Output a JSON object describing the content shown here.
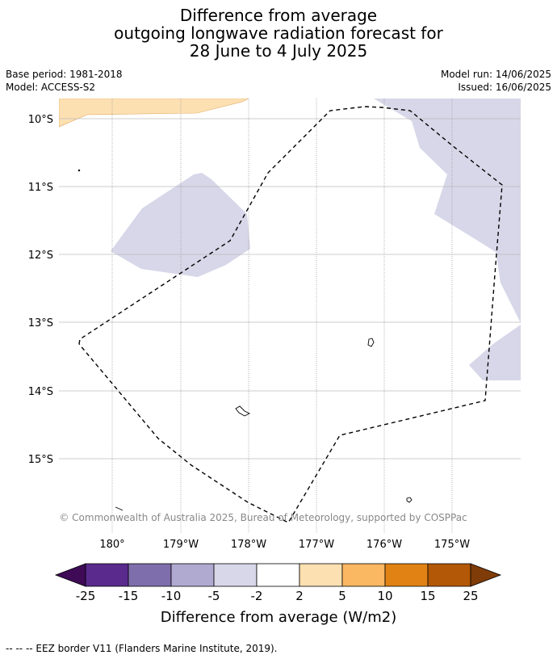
{
  "title": {
    "line1": "Difference from average",
    "line2": "outgoing longwave radiation forecast for",
    "line3": "28 June to 4 July 2025"
  },
  "meta": {
    "base_period": "Base period: 1981-2018",
    "model": "Model: ACCESS-S2",
    "model_run": "Model run: 14/06/2025",
    "issued": "Issued: 16/06/2025"
  },
  "map": {
    "lat_labels": [
      "10°S",
      "11°S",
      "12°S",
      "13°S",
      "14°S",
      "15°S"
    ],
    "lon_labels": [
      "180°",
      "179°W",
      "178°W",
      "177°W",
      "176°W",
      "175°W"
    ],
    "copyright": "© Commonwealth of Australia 2025, Bureau of Meteorology, supported by COSPPac",
    "colors": {
      "slight_negative": "#d7d7e9",
      "slight_positive": "#fde0b2",
      "gridline": "#bbbbbb",
      "eez_border": "#000000"
    }
  },
  "colorbar": {
    "ticks": [
      "-25",
      "-15",
      "-10",
      "-5",
      "-2",
      "2",
      "5",
      "10",
      "15",
      "25"
    ],
    "colors": [
      "#3f0b57",
      "#5a2a8d",
      "#7e6eac",
      "#b0a9d0",
      "#d7d7e9",
      "#ffffff",
      "#fde0b2",
      "#fbb862",
      "#e08314",
      "#b35806",
      "#7f3b08"
    ],
    "label": "Difference from average (W/m2)"
  },
  "footnote": "--  --  -- EEZ border V11 (Flanders Marine Institute, 2019)."
}
